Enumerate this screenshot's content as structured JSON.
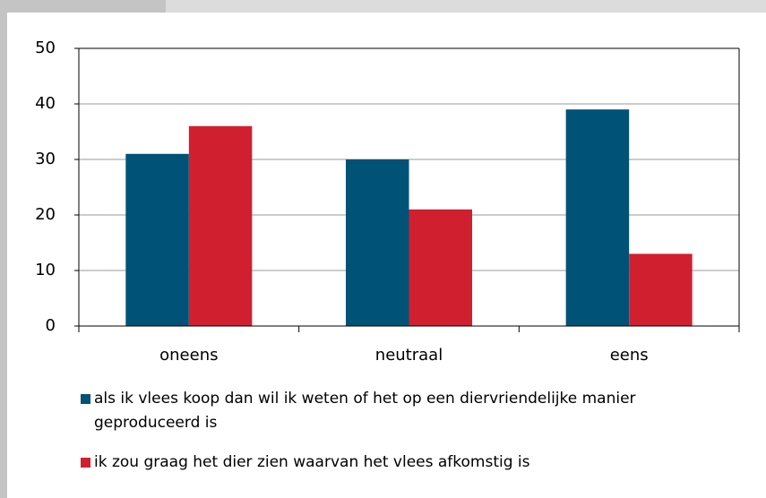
{
  "chart_data": {
    "type": "bar",
    "categories": [
      "oneens",
      "neutraal",
      "eens"
    ],
    "series": [
      {
        "name": "als ik vlees koop dan wil ik weten of het op een diervriendelijke manier geproduceerd is",
        "color": "#005376",
        "values": [
          31,
          30,
          39
        ]
      },
      {
        "name": "ik zou graag het dier zien waarvan het vlees afkomstig is",
        "color": "#d0202f",
        "values": [
          36,
          21,
          13
        ]
      }
    ],
    "ylim": [
      0,
      50
    ],
    "yticks": [
      0,
      10,
      20,
      30,
      40,
      50
    ],
    "grid": true
  }
}
